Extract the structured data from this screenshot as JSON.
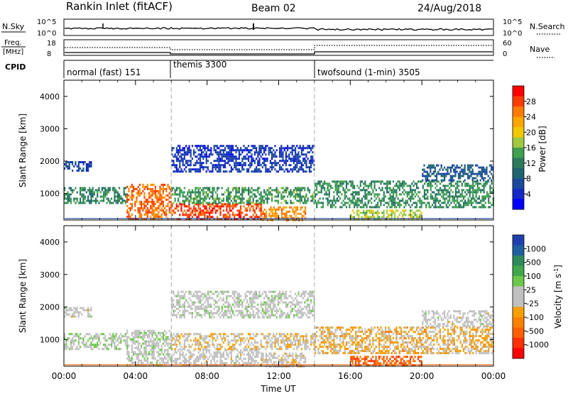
{
  "header": {
    "station": "Rankin Inlet (fitACF)",
    "beam": "Beam 02",
    "date": "24/Aug/2018"
  },
  "noise_panel": {
    "left_label": "N.Sky",
    "right_label": "N.Search",
    "left_ticks": [
      "10^5",
      "10^0"
    ],
    "right_ticks": [
      "10^5",
      "10^0"
    ]
  },
  "freq_panel": {
    "left_label_1": "Freq.",
    "left_label_2": "[MHz]",
    "right_label": "Nave",
    "left_ticks": [
      "18",
      "8"
    ],
    "right_ticks": [
      "60",
      "0"
    ]
  },
  "cpid_panel": {
    "label": "CPID",
    "modes": [
      {
        "name": "normal (fast) 151",
        "start_hour": 0
      },
      {
        "name": "themis 3300",
        "start_hour": 6
      },
      {
        "name": "twofsound (1-min) 3505",
        "start_hour": 14
      }
    ]
  },
  "time_axis": {
    "xlabel": "Time UT",
    "tick_labels": [
      "00:00",
      "04:00",
      "08:00",
      "12:00",
      "16:00",
      "20:00",
      "00:00"
    ]
  },
  "power_colorbar": {
    "label": "Power [dB]",
    "ticks": [
      "28",
      "24",
      "20",
      "16",
      "12",
      "8",
      "4"
    ],
    "colors": [
      "#ff0000",
      "#ff3c00",
      "#ff7a00",
      "#ffa500",
      "#f0c800",
      "#a0c840",
      "#3fa050",
      "#2c7a5c",
      "#1f6470",
      "#1a4a9c",
      "#1428c8",
      "#0000ff"
    ]
  },
  "velocity_colorbar": {
    "label_text": "Velocity [m s",
    "label_sup": "-1",
    "label_end": "]",
    "ticks": [
      "1000",
      "500",
      "100",
      "25",
      "-25",
      "-100",
      "-500",
      "-1000"
    ],
    "colors": [
      "#2040b0",
      "#1f5fa0",
      "#2c8a5c",
      "#3fa84c",
      "#6cc84a",
      "#c0c0c0",
      "#c0c0c0",
      "#f5a000",
      "#ff8000",
      "#ff6000",
      "#ff3000",
      "#ff0000"
    ]
  },
  "chart_data": [
    {
      "type": "heatmap",
      "name": "Power",
      "xlabel": "",
      "ylabel": "Slant Range [km]",
      "x_range_hours": [
        0,
        24
      ],
      "ylim": [
        180,
        4500
      ],
      "y_ticks": [
        1000,
        2000,
        3000,
        4000
      ],
      "color_range_db": [
        0,
        32
      ],
      "mode_change_hours": [
        6,
        14
      ],
      "echo_bands": [
        {
          "t0": 0,
          "t1": 1.5,
          "r0": 1700,
          "r1": 2000,
          "value": 6
        },
        {
          "t0": 0,
          "t1": 3.5,
          "r0": 700,
          "r1": 1200,
          "value": 12
        },
        {
          "t0": 3.5,
          "t1": 6,
          "r0": 200,
          "r1": 1300,
          "value": 26
        },
        {
          "t0": 6,
          "t1": 11,
          "r0": 200,
          "r1": 700,
          "value": 28
        },
        {
          "t0": 6,
          "t1": 14,
          "r0": 700,
          "r1": 1200,
          "value": 14
        },
        {
          "t0": 11,
          "t1": 13.5,
          "r0": 200,
          "r1": 600,
          "value": 24
        },
        {
          "t0": 6,
          "t1": 14,
          "r0": 1700,
          "r1": 2500,
          "value": 5
        },
        {
          "t0": 14,
          "t1": 24,
          "r0": 600,
          "r1": 1400,
          "value": 13
        },
        {
          "t0": 20,
          "t1": 24,
          "r0": 1400,
          "r1": 1900,
          "value": 8
        },
        {
          "t0": 16,
          "t1": 20,
          "r0": 200,
          "r1": 500,
          "value": 18
        }
      ]
    },
    {
      "type": "heatmap",
      "name": "Velocity",
      "xlabel": "Time UT",
      "ylabel": "Slant Range [km]",
      "x_range_hours": [
        0,
        24
      ],
      "ylim": [
        180,
        4500
      ],
      "y_ticks": [
        1000,
        2000,
        3000,
        4000
      ],
      "color_range_ms": [
        -1000,
        1000
      ],
      "mode_change_hours": [
        6,
        14
      ],
      "echo_bands": [
        {
          "t0": 0,
          "t1": 1.5,
          "r0": 1700,
          "r1": 2000,
          "value": 0
        },
        {
          "t0": 0,
          "t1": 3.5,
          "r0": 700,
          "r1": 1200,
          "value": 120
        },
        {
          "t0": 3.5,
          "t1": 6,
          "r0": 200,
          "r1": 1300,
          "value": 60
        },
        {
          "t0": 6,
          "t1": 11,
          "r0": 200,
          "r1": 700,
          "value": 0
        },
        {
          "t0": 6,
          "t1": 14,
          "r0": 700,
          "r1": 1200,
          "value": -120
        },
        {
          "t0": 11,
          "t1": 13.5,
          "r0": 200,
          "r1": 600,
          "value": -50
        },
        {
          "t0": 6,
          "t1": 14,
          "r0": 1700,
          "r1": 2500,
          "value": 40
        },
        {
          "t0": 14,
          "t1": 24,
          "r0": 600,
          "r1": 1400,
          "value": -200
        },
        {
          "t0": 20,
          "t1": 24,
          "r0": 1400,
          "r1": 1900,
          "value": 0
        },
        {
          "t0": 16,
          "t1": 20,
          "r0": 200,
          "r1": 500,
          "value": -600
        }
      ]
    }
  ]
}
